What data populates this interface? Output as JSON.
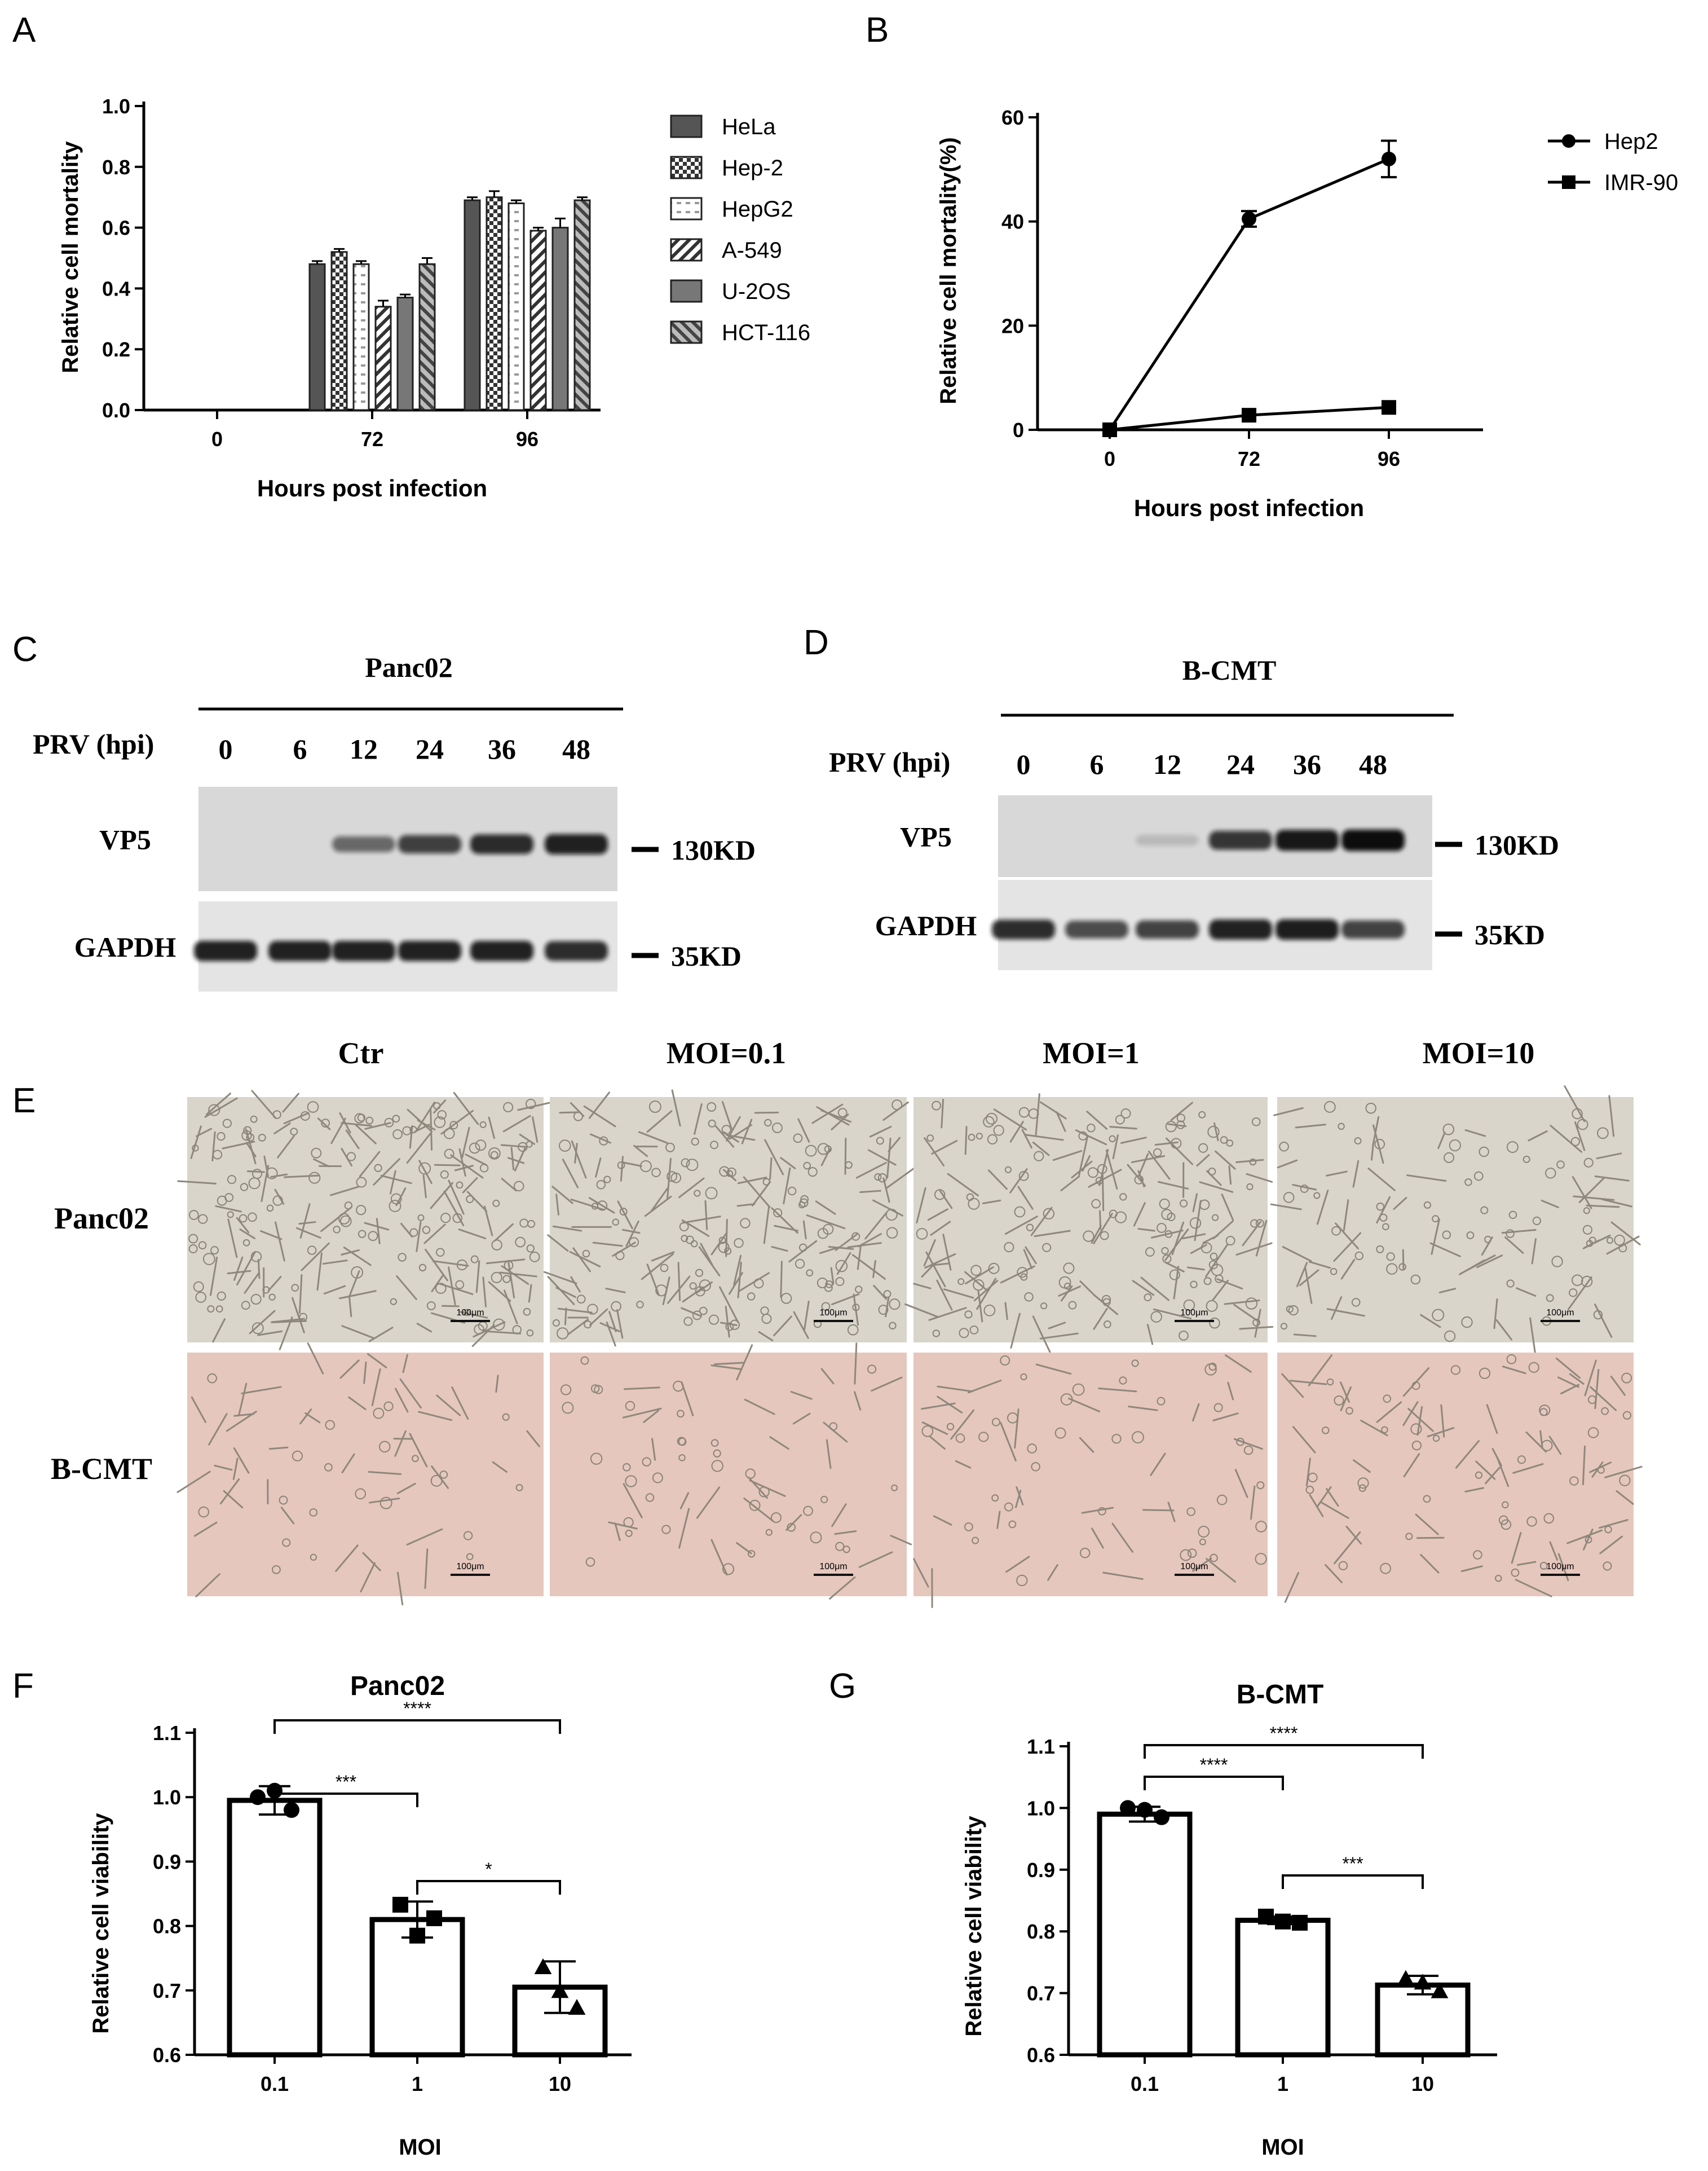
{
  "panel_labels": [
    "A",
    "B",
    "C",
    "D",
    "E",
    "F",
    "G"
  ],
  "chart_data": [
    {
      "panel": "A",
      "type": "bar",
      "xlabel": "Hours post infection",
      "ylabel": "Relative cell mortality",
      "ylim": [
        0,
        1.0
      ],
      "yticks": [
        "0.0",
        "0.2",
        "0.4",
        "0.6",
        "0.8",
        "1.0"
      ],
      "categories": [
        "0",
        "72",
        "96"
      ],
      "legend_position": "right",
      "series": [
        {
          "name": "HeLa",
          "values": [
            0,
            0.48,
            0.69
          ],
          "errors": [
            0,
            0.01,
            0.01
          ],
          "pattern": "solid-dark"
        },
        {
          "name": "Hep-2",
          "values": [
            0,
            0.52,
            0.7
          ],
          "errors": [
            0,
            0.01,
            0.02
          ],
          "pattern": "checker"
        },
        {
          "name": "HepG2",
          "values": [
            0,
            0.48,
            0.68
          ],
          "errors": [
            0,
            0.01,
            0.01
          ],
          "pattern": "white-dash"
        },
        {
          "name": "A-549",
          "values": [
            0,
            0.34,
            0.59
          ],
          "errors": [
            0,
            0.02,
            0.01
          ],
          "pattern": "diag-left"
        },
        {
          "name": "U-2OS",
          "values": [
            0,
            0.37,
            0.6
          ],
          "errors": [
            0,
            0.01,
            0.03
          ],
          "pattern": "solid-gray"
        },
        {
          "name": "HCT-116",
          "values": [
            0,
            0.48,
            0.69
          ],
          "errors": [
            0,
            0.02,
            0.01
          ],
          "pattern": "diag-right"
        }
      ]
    },
    {
      "panel": "B",
      "type": "line",
      "xlabel": "Hours post infection",
      "ylabel": "Relative cell mortality(%)",
      "ylim": [
        0,
        60
      ],
      "yticks": [
        "0",
        "20",
        "40",
        "60"
      ],
      "categories": [
        "0",
        "72",
        "96"
      ],
      "legend_position": "right",
      "series": [
        {
          "name": "Hep2",
          "marker": "circle",
          "values": [
            0,
            40.5,
            52
          ],
          "errors": [
            0,
            1.5,
            3.5
          ]
        },
        {
          "name": "IMR-90",
          "marker": "square",
          "values": [
            0,
            2.8,
            4.3
          ],
          "errors": [
            0,
            0.4,
            0.6
          ]
        }
      ]
    },
    {
      "panel": "F",
      "type": "bar",
      "title": "Panc02",
      "xlabel": "MOI",
      "ylabel": "Relative cell viability",
      "ylim": [
        0.6,
        1.1
      ],
      "yticks": [
        "0.6",
        "0.7",
        "0.8",
        "0.9",
        "1.0",
        "1.1"
      ],
      "categories": [
        "0.1",
        "1",
        "10"
      ],
      "values": [
        0.995,
        0.81,
        0.705
      ],
      "errors": [
        0.022,
        0.028,
        0.04
      ],
      "points": [
        [
          1.0,
          1.01,
          0.98
        ],
        [
          0.833,
          0.785,
          0.812
        ],
        [
          0.735,
          0.698,
          0.672
        ]
      ],
      "markers": [
        "circle",
        "square",
        "triangle"
      ],
      "significance": [
        {
          "from": 0,
          "to": 1,
          "label": "***"
        },
        {
          "from": 0,
          "to": 2,
          "label": "****"
        },
        {
          "from": 1,
          "to": 2,
          "label": "*"
        }
      ]
    },
    {
      "panel": "G",
      "type": "bar",
      "title": "B-CMT",
      "xlabel": "MOI",
      "ylabel": "Relative cell viability",
      "ylim": [
        0.6,
        1.1
      ],
      "yticks": [
        "0.6",
        "0.7",
        "0.8",
        "0.9",
        "1.0",
        "1.1"
      ],
      "categories": [
        "0.1",
        "1",
        "10"
      ],
      "values": [
        0.99,
        0.818,
        0.713
      ],
      "errors": [
        0.012,
        0.006,
        0.015
      ],
      "points": [
        [
          1.0,
          0.997,
          0.985
        ],
        [
          0.824,
          0.816,
          0.814
        ],
        [
          0.722,
          0.716,
          0.702
        ]
      ],
      "markers": [
        "circle",
        "square",
        "triangle"
      ],
      "significance": [
        {
          "from": 0,
          "to": 1,
          "label": "****"
        },
        {
          "from": 0,
          "to": 2,
          "label": "****"
        },
        {
          "from": 1,
          "to": 2,
          "label": "***"
        }
      ]
    }
  ],
  "blot_c": {
    "title": "Panc02",
    "row_label": "PRV (hpi)",
    "lanes": [
      "0",
      "6",
      "12",
      "24",
      "36",
      "48"
    ],
    "bands": [
      {
        "name": "VP5",
        "marker": "130KD",
        "intensities": [
          0,
          0,
          0.55,
          0.75,
          0.85,
          0.9
        ]
      },
      {
        "name": "GAPDH",
        "marker": "35KD",
        "intensities": [
          0.9,
          0.9,
          0.9,
          0.9,
          0.9,
          0.85
        ]
      }
    ]
  },
  "blot_d": {
    "title": "B-CMT",
    "row_label": "PRV (hpi)",
    "lanes": [
      "0",
      "6",
      "12",
      "24",
      "36",
      "48"
    ],
    "bands": [
      {
        "name": "VP5",
        "marker": "130KD",
        "intensities": [
          0,
          0,
          0.15,
          0.8,
          0.95,
          1.0
        ]
      },
      {
        "name": "GAPDH",
        "marker": "35KD",
        "intensities": [
          0.85,
          0.7,
          0.75,
          0.9,
          0.92,
          0.75
        ]
      }
    ]
  },
  "micrographs": {
    "columns": [
      "Ctr",
      "MOI=0.1",
      "MOI=1",
      "MOI=10"
    ],
    "rows": [
      {
        "label": "Panc02",
        "bg": "#d9d5cb"
      },
      {
        "label": "B-CMT",
        "bg": "#e6c7bd"
      }
    ],
    "scale_bar": "100μm",
    "cell_counts": [
      [
        260,
        240,
        220,
        130
      ],
      [
        70,
        75,
        80,
        110
      ]
    ]
  },
  "colors": {
    "ink": "#000000",
    "dark_bar": "#555555",
    "gray_bar": "#777777",
    "blot_bg": "#dadada",
    "band": "#111111"
  }
}
